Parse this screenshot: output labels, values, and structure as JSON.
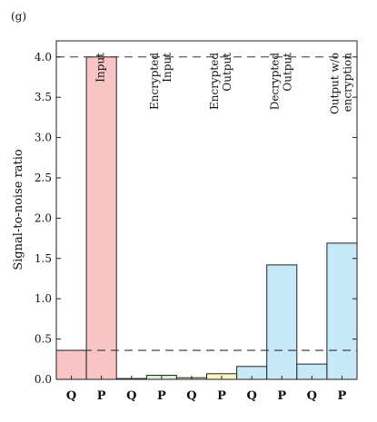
{
  "panel_label": "(g)",
  "chart_data": {
    "type": "bar",
    "ylabel": "Signal-to-noise ratio",
    "ylim": [
      0,
      4.2
    ],
    "yticks": [
      0.0,
      0.5,
      1.0,
      1.5,
      2.0,
      2.5,
      3.0,
      3.5,
      4.0
    ],
    "ytick_labels": [
      "0.0",
      "0.5",
      "1.0",
      "1.5",
      "2.0",
      "2.5",
      "3.0",
      "3.5",
      "4.0"
    ],
    "categories": [
      "Q",
      "P",
      "Q",
      "P",
      "Q",
      "P",
      "Q",
      "P",
      "Q",
      "P"
    ],
    "values": [
      0.36,
      4.0,
      0.01,
      0.05,
      0.02,
      0.07,
      0.16,
      1.42,
      0.19,
      1.69
    ],
    "bar_colors": [
      "#f9c4c4",
      "#f9c4c4",
      "#d8f2d8",
      "#d8f2d8",
      "#f8f5c4",
      "#f8f5c4",
      "#c7e8f8",
      "#c7e8f8",
      "#c7e8f8",
      "#c7e8f8"
    ],
    "groups": [
      {
        "label_lines": [
          "Input"
        ],
        "bars": [
          0,
          1
        ]
      },
      {
        "label_lines": [
          "Encrypted",
          "Input"
        ],
        "bars": [
          2,
          3
        ]
      },
      {
        "label_lines": [
          "Encrypted",
          "Output"
        ],
        "bars": [
          4,
          5
        ]
      },
      {
        "label_lines": [
          "Decrypted",
          "Output"
        ],
        "bars": [
          6,
          7
        ]
      },
      {
        "label_lines": [
          "Output w/o",
          "encryption"
        ],
        "bars": [
          8,
          9
        ]
      }
    ],
    "reference_lines": [
      4.0,
      0.36
    ],
    "grid": false
  }
}
